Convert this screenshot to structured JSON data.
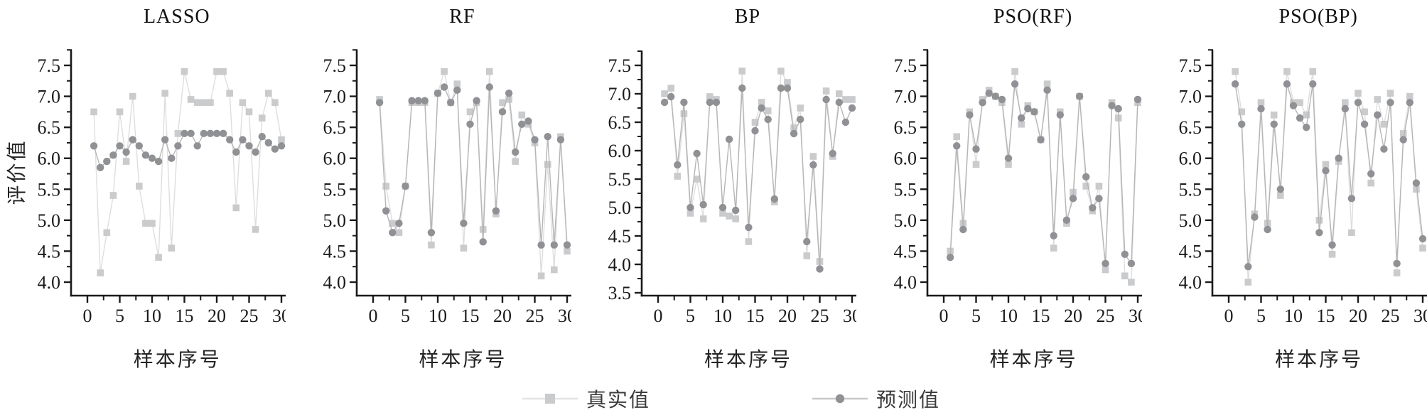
{
  "figure": {
    "ylabel": "评价值",
    "xlabel": "样本序号",
    "x_values": [
      1,
      2,
      3,
      4,
      5,
      6,
      7,
      8,
      9,
      10,
      11,
      12,
      13,
      14,
      15,
      16,
      17,
      18,
      19,
      20,
      21,
      22,
      23,
      24,
      25,
      26,
      27,
      28,
      29,
      30
    ],
    "legend": [
      {
        "key": "true",
        "label": "真实值",
        "marker": "square",
        "color": "#c9cbcd",
        "line_color": "#dedede",
        "legend_line_color": "#e4e4e4"
      },
      {
        "key": "pred",
        "label": "预测值",
        "marker": "circle",
        "color": "#8f9194",
        "line_color": "#b6b6b6",
        "legend_line_color": "#c8c8c8"
      }
    ],
    "axis_color": "#1a1a1a",
    "text_color": "#1b1b1b"
  },
  "chart_data": [
    {
      "type": "line",
      "title": "LASSO",
      "xlabel": "样本序号",
      "ylabel": "评价值",
      "xlim": [
        0,
        30
      ],
      "ylim": [
        4.0,
        7.5
      ],
      "xticks": [
        0,
        5,
        10,
        15,
        20,
        25,
        30
      ],
      "yticks": [
        4.0,
        4.5,
        5.0,
        5.5,
        6.0,
        6.5,
        7.0,
        7.5
      ],
      "series": [
        {
          "name": "真实值",
          "values": [
            6.75,
            4.15,
            4.8,
            5.4,
            6.75,
            5.95,
            7.0,
            5.55,
            4.95,
            4.95,
            4.4,
            7.05,
            4.55,
            6.4,
            7.4,
            6.95,
            6.9,
            6.9,
            6.9,
            7.4,
            7.4,
            7.05,
            5.2,
            6.9,
            6.75,
            4.85,
            6.65,
            7.05,
            6.9,
            6.3
          ]
        },
        {
          "name": "预测值",
          "values": [
            6.2,
            5.85,
            5.95,
            6.05,
            6.2,
            6.1,
            6.3,
            6.2,
            6.05,
            6.0,
            5.95,
            6.3,
            6.0,
            6.2,
            6.4,
            6.4,
            6.2,
            6.4,
            6.4,
            6.4,
            6.4,
            6.3,
            6.1,
            6.3,
            6.2,
            6.1,
            6.35,
            6.25,
            6.15,
            6.2
          ]
        }
      ]
    },
    {
      "type": "line",
      "title": "RF",
      "xlabel": "样本序号",
      "ylabel": "",
      "xlim": [
        0,
        30
      ],
      "ylim": [
        4.0,
        7.5
      ],
      "xticks": [
        0,
        5,
        10,
        15,
        20,
        25,
        30
      ],
      "yticks": [
        4.0,
        4.5,
        5.0,
        5.5,
        6.0,
        6.5,
        7.0,
        7.5
      ],
      "series": [
        {
          "name": "真实值",
          "values": [
            6.95,
            5.55,
            4.95,
            4.8,
            5.55,
            6.9,
            6.9,
            6.9,
            4.6,
            7.05,
            7.4,
            6.9,
            7.2,
            4.55,
            6.75,
            6.9,
            4.85,
            7.4,
            5.1,
            6.9,
            6.95,
            5.95,
            6.7,
            6.55,
            6.25,
            4.1,
            5.9,
            4.2,
            6.35,
            4.5
          ]
        },
        {
          "name": "预测值",
          "values": [
            6.9,
            5.15,
            4.8,
            4.95,
            5.55,
            6.93,
            6.93,
            6.93,
            4.8,
            7.05,
            7.15,
            6.9,
            7.1,
            4.95,
            6.55,
            6.93,
            4.65,
            7.15,
            5.15,
            6.75,
            7.05,
            6.1,
            6.55,
            6.6,
            6.3,
            4.6,
            6.35,
            4.6,
            6.3,
            4.6
          ]
        }
      ]
    },
    {
      "type": "line",
      "title": "BP",
      "xlabel": "样本序号",
      "ylabel": "",
      "xlim": [
        0,
        30
      ],
      "ylim": [
        3.5,
        7.5
      ],
      "xticks": [
        0,
        5,
        10,
        15,
        20,
        25,
        30
      ],
      "yticks": [
        3.5,
        4.0,
        4.5,
        5.0,
        5.5,
        6.0,
        6.5,
        7.0,
        7.5
      ],
      "series": [
        {
          "name": "真实值",
          "values": [
            7.0,
            7.1,
            5.55,
            6.65,
            4.9,
            5.5,
            4.8,
            6.95,
            6.9,
            4.9,
            4.85,
            4.8,
            7.4,
            4.4,
            6.5,
            6.85,
            6.7,
            5.1,
            7.4,
            7.2,
            6.4,
            6.75,
            4.15,
            5.9,
            4.05,
            7.05,
            5.9,
            7.0,
            6.9,
            6.9
          ]
        },
        {
          "name": "预测值",
          "values": [
            6.85,
            6.95,
            5.75,
            6.85,
            5.0,
            5.95,
            5.05,
            6.85,
            6.85,
            5.0,
            6.2,
            4.95,
            7.1,
            4.65,
            6.35,
            6.75,
            6.55,
            5.15,
            7.1,
            7.1,
            6.3,
            6.55,
            4.4,
            5.75,
            3.92,
            6.9,
            5.95,
            6.85,
            6.5,
            6.75
          ]
        }
      ]
    },
    {
      "type": "line",
      "title": "PSO(RF)",
      "xlabel": "样本序号",
      "ylabel": "",
      "xlim": [
        0,
        30
      ],
      "ylim": [
        4.0,
        7.5
      ],
      "xticks": [
        0,
        5,
        10,
        15,
        20,
        25,
        30
      ],
      "yticks": [
        4.0,
        4.5,
        5.0,
        5.5,
        6.0,
        6.5,
        7.0,
        7.5
      ],
      "series": [
        {
          "name": "真实值",
          "values": [
            4.5,
            6.35,
            4.95,
            6.75,
            5.9,
            6.95,
            7.1,
            7.0,
            6.9,
            5.9,
            7.4,
            6.55,
            6.85,
            6.75,
            6.3,
            7.2,
            4.55,
            6.75,
            4.95,
            5.45,
            7.0,
            5.55,
            5.15,
            5.55,
            4.2,
            6.9,
            6.65,
            4.1,
            4.0,
            6.9
          ]
        },
        {
          "name": "预测值",
          "values": [
            4.4,
            6.2,
            4.85,
            6.7,
            6.15,
            6.9,
            7.05,
            7.0,
            6.95,
            6.0,
            7.2,
            6.65,
            6.8,
            6.75,
            6.3,
            7.1,
            4.75,
            6.7,
            5.0,
            5.35,
            7.0,
            5.7,
            5.2,
            5.35,
            4.3,
            6.85,
            6.8,
            4.45,
            4.3,
            6.95
          ]
        }
      ]
    },
    {
      "type": "line",
      "title": "PSO(BP)",
      "xlabel": "样本序号",
      "ylabel": "",
      "xlim": [
        0,
        30
      ],
      "ylim": [
        4.0,
        7.5
      ],
      "xticks": [
        0,
        5,
        10,
        15,
        20,
        25,
        30
      ],
      "yticks": [
        4.0,
        4.5,
        5.0,
        5.5,
        6.0,
        6.5,
        7.0,
        7.5
      ],
      "series": [
        {
          "name": "真实值",
          "values": [
            7.4,
            6.75,
            4.0,
            5.1,
            6.9,
            4.95,
            6.7,
            5.4,
            7.4,
            6.9,
            6.9,
            6.7,
            7.4,
            5.0,
            5.9,
            4.45,
            5.95,
            6.9,
            4.8,
            7.05,
            6.75,
            5.6,
            6.95,
            6.55,
            7.05,
            4.15,
            6.4,
            7.0,
            5.5,
            4.55
          ]
        },
        {
          "name": "预测值",
          "values": [
            7.2,
            6.55,
            4.25,
            5.05,
            6.8,
            4.85,
            6.55,
            5.5,
            7.2,
            6.85,
            6.65,
            6.5,
            7.2,
            4.8,
            5.8,
            4.6,
            6.0,
            6.8,
            5.35,
            6.9,
            6.55,
            5.75,
            6.7,
            6.15,
            6.9,
            4.3,
            6.3,
            6.9,
            5.6,
            4.7
          ]
        }
      ]
    }
  ]
}
